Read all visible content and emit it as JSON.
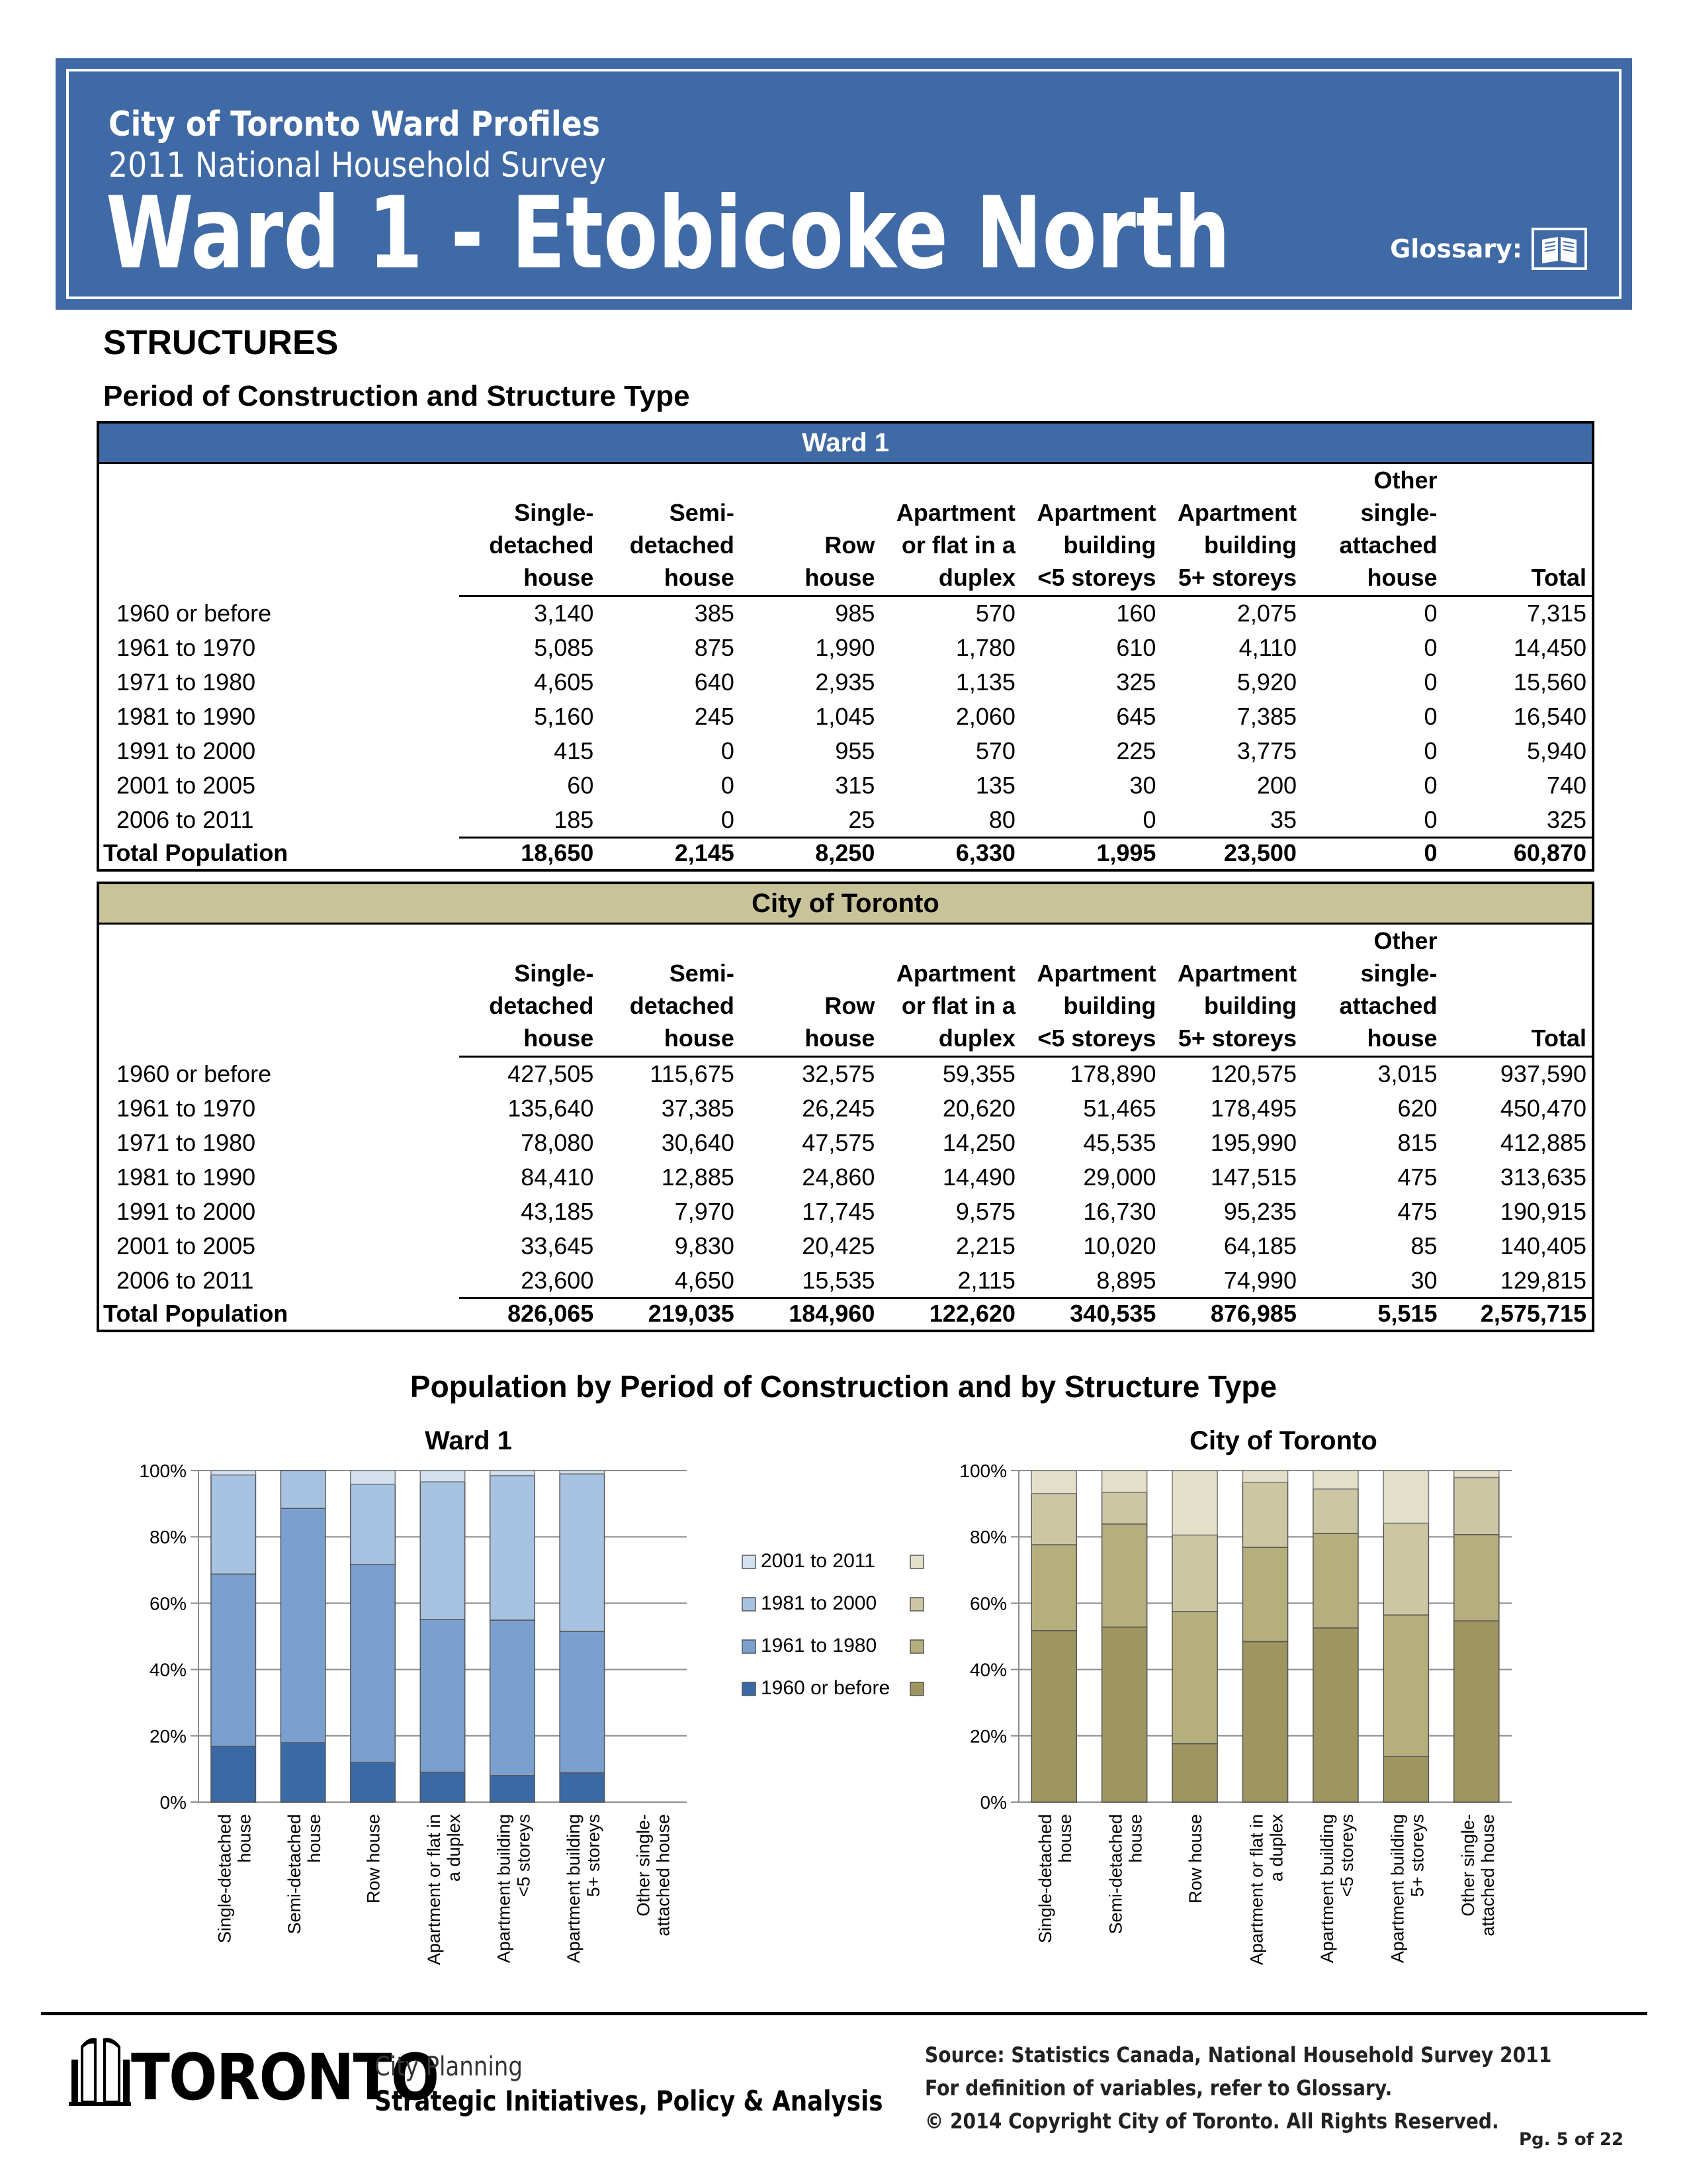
{
  "header": {
    "line1": "City of Toronto Ward Profiles",
    "line2": "2011 National Household Survey",
    "title": "Ward 1 - Etobicoke North",
    "glossary_label": "Glossary:",
    "glossary_icon": "book-icon",
    "color": "#3f6aa6"
  },
  "section": {
    "title": "STRUCTURES",
    "subtitle": "Period of Construction and Structure Type"
  },
  "columns": [
    "Single-\ndetached\nhouse",
    "Semi-\ndetached\nhouse",
    "Row\nhouse",
    "Apartment\nor flat in a\nduplex",
    "Apartment\nbuilding\n<5 storeys",
    "Apartment\nbuilding\n5+ storeys",
    "Other\nsingle-\nattached\nhouse",
    "Total"
  ],
  "ward_table": {
    "title": "Ward 1",
    "rows": [
      {
        "label": "1960 or before",
        "values": [
          "3,140",
          "385",
          "985",
          "570",
          "160",
          "2,075",
          "0",
          "7,315"
        ]
      },
      {
        "label": "1961 to 1970",
        "values": [
          "5,085",
          "875",
          "1,990",
          "1,780",
          "610",
          "4,110",
          "0",
          "14,450"
        ]
      },
      {
        "label": "1971 to 1980",
        "values": [
          "4,605",
          "640",
          "2,935",
          "1,135",
          "325",
          "5,920",
          "0",
          "15,560"
        ]
      },
      {
        "label": "1981 to 1990",
        "values": [
          "5,160",
          "245",
          "1,045",
          "2,060",
          "645",
          "7,385",
          "0",
          "16,540"
        ]
      },
      {
        "label": "1991 to 2000",
        "values": [
          "415",
          "0",
          "955",
          "570",
          "225",
          "3,775",
          "0",
          "5,940"
        ]
      },
      {
        "label": "2001 to 2005",
        "values": [
          "60",
          "0",
          "315",
          "135",
          "30",
          "200",
          "0",
          "740"
        ]
      },
      {
        "label": "2006 to 2011",
        "values": [
          "185",
          "0",
          "25",
          "80",
          "0",
          "35",
          "0",
          "325"
        ]
      }
    ],
    "total": {
      "label": "Total Population",
      "values": [
        "18,650",
        "2,145",
        "8,250",
        "6,330",
        "1,995",
        "23,500",
        "0",
        "60,870"
      ]
    }
  },
  "city_table": {
    "title": "City of Toronto",
    "rows": [
      {
        "label": "1960 or before",
        "values": [
          "427,505",
          "115,675",
          "32,575",
          "59,355",
          "178,890",
          "120,575",
          "3,015",
          "937,590"
        ]
      },
      {
        "label": "1961 to 1970",
        "values": [
          "135,640",
          "37,385",
          "26,245",
          "20,620",
          "51,465",
          "178,495",
          "620",
          "450,470"
        ]
      },
      {
        "label": "1971 to 1980",
        "values": [
          "78,080",
          "30,640",
          "47,575",
          "14,250",
          "45,535",
          "195,990",
          "815",
          "412,885"
        ]
      },
      {
        "label": "1981 to 1990",
        "values": [
          "84,410",
          "12,885",
          "24,860",
          "14,490",
          "29,000",
          "147,515",
          "475",
          "313,635"
        ]
      },
      {
        "label": "1991 to 2000",
        "values": [
          "43,185",
          "7,970",
          "17,745",
          "9,575",
          "16,730",
          "95,235",
          "475",
          "190,915"
        ]
      },
      {
        "label": "2001 to 2005",
        "values": [
          "33,645",
          "9,830",
          "20,425",
          "2,215",
          "10,020",
          "64,185",
          "85",
          "140,405"
        ]
      },
      {
        "label": "2006 to 2011",
        "values": [
          "23,600",
          "4,650",
          "15,535",
          "2,115",
          "8,895",
          "74,990",
          "30",
          "129,815"
        ]
      }
    ],
    "total": {
      "label": "Total Population",
      "values": [
        "826,065",
        "219,035",
        "184,960",
        "122,620",
        "340,535",
        "876,985",
        "5,515",
        "2,575,715"
      ]
    }
  },
  "charts_title": "Population by Period of Construction and by Structure Type",
  "chart_data": [
    {
      "type": "bar",
      "stacked": "percent",
      "title": "Ward 1",
      "categories": [
        "Single-detached house",
        "Semi-detached house",
        "Row house",
        "Apartment or flat in a duplex",
        "Apartment building <5 storeys",
        "Apartment building 5+ storeys",
        "Other single-attached house"
      ],
      "ylim": [
        0,
        100
      ],
      "yticks": [
        "0%",
        "20%",
        "40%",
        "60%",
        "80%",
        "100%"
      ],
      "grid": true,
      "series": [
        {
          "name": "1960 or before",
          "color": "#3a6aa6",
          "values": [
            3140,
            385,
            985,
            570,
            160,
            2075,
            0
          ]
        },
        {
          "name": "1961 to 1980",
          "color": "#7aa0d0",
          "values": [
            9690,
            1515,
            4925,
            2915,
            935,
            10030,
            0
          ]
        },
        {
          "name": "1981 to 2000",
          "color": "#a8c2e2",
          "values": [
            5575,
            245,
            2000,
            2630,
            870,
            11160,
            0
          ]
        },
        {
          "name": "2001 to 2011",
          "color": "#d2e0f0",
          "values": [
            245,
            0,
            340,
            215,
            30,
            235,
            0
          ]
        }
      ]
    },
    {
      "type": "bar",
      "stacked": "percent",
      "title": "City of Toronto",
      "categories": [
        "Single-detached house",
        "Semi-detached house",
        "Row house",
        "Apartment or flat in a duplex",
        "Apartment building <5 storeys",
        "Apartment building 5+ storeys",
        "Other single-attached house"
      ],
      "ylim": [
        0,
        100
      ],
      "yticks": [
        "0%",
        "20%",
        "40%",
        "60%",
        "80%",
        "100%"
      ],
      "grid": true,
      "series": [
        {
          "name": "1960 or before",
          "color": "#9e9560",
          "values": [
            427505,
            115675,
            32575,
            59355,
            178890,
            120575,
            3015
          ]
        },
        {
          "name": "1961 to 1980",
          "color": "#b5ae7d",
          "values": [
            213720,
            68025,
            73820,
            34870,
            97000,
            374485,
            1435
          ]
        },
        {
          "name": "1981 to 2000",
          "color": "#ccc6a3",
          "values": [
            127595,
            20855,
            42605,
            24065,
            45730,
            242750,
            950
          ]
        },
        {
          "name": "2001 to 2011",
          "color": "#e3dfc8",
          "values": [
            57245,
            14480,
            35960,
            4330,
            18915,
            139175,
            115
          ]
        }
      ]
    }
  ],
  "legend": [
    "2001 to 2011",
    "1981 to 2000",
    "1961 to 1980",
    "1960 or before"
  ],
  "axis_labels": [
    "Single-detached\nhouse",
    "Semi-detached\nhouse",
    "Row house",
    "Apartment or flat in\na duplex",
    "Apartment building\n<5 storeys",
    "Apartment building\n5+ storeys",
    "Other single-\nattached house"
  ],
  "footer": {
    "logo_word": "TORONTO",
    "dept_line1": "City Planning",
    "dept_line2": "Strategic Initiatives, Policy & Analysis",
    "source1": "Source: Statistics Canada, National Household Survey 2011",
    "source2": "For definition of variables, refer to Glossary.",
    "source3": "© 2014 Copyright City of Toronto.  All Rights Reserved.",
    "page": "Pg. 5 of 22"
  }
}
